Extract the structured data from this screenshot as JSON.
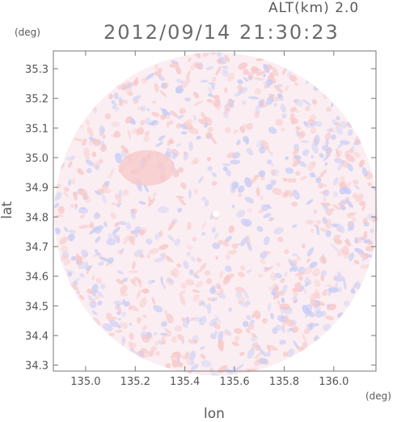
{
  "header": {
    "altitude_label": "ALT(km) 2.0",
    "datetime": "2012/09/14 21:30:23"
  },
  "chart_data": {
    "type": "heatmap",
    "title": "",
    "xlabel": "lon",
    "ylabel": "lat",
    "x_unit": "(deg)",
    "y_unit": "(deg)",
    "xlim": [
      134.87,
      136.17
    ],
    "ylim": [
      34.28,
      35.36
    ],
    "x_ticks": [
      "135.0",
      "135.2",
      "135.4",
      "135.6",
      "135.8",
      "136.0"
    ],
    "x_tick_values": [
      135.0,
      135.2,
      135.4,
      135.6,
      135.8,
      136.0
    ],
    "y_ticks": [
      "34.3",
      "34.4",
      "34.5",
      "34.6",
      "34.7",
      "34.8",
      "34.9",
      "35.0",
      "35.1",
      "35.2",
      "35.3"
    ],
    "y_tick_values": [
      34.3,
      34.4,
      34.5,
      34.6,
      34.7,
      34.8,
      34.9,
      35.0,
      35.1,
      35.2,
      35.3
    ],
    "radar_center": [
      135.525,
      34.81
    ],
    "coverage": "circular",
    "grid": false,
    "colors": {
      "positive": "#f7c8c8",
      "negative": "#c8cdf5",
      "neutral": "#fbeef2",
      "axis": "#777777"
    }
  }
}
